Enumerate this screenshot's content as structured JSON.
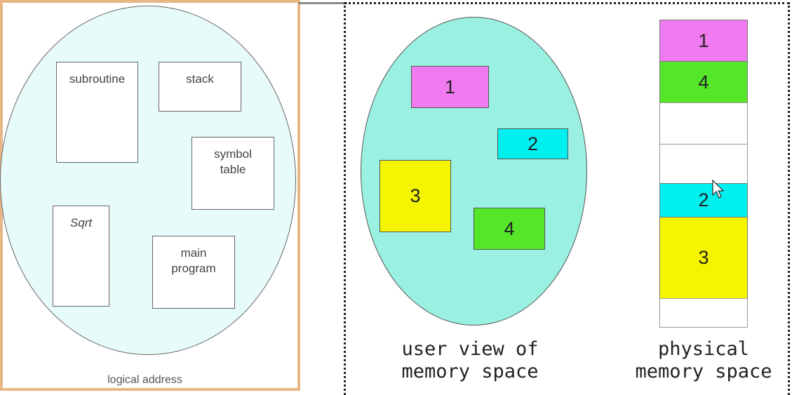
{
  "logical_view": {
    "segments": {
      "subroutine": "subroutine",
      "stack": "stack",
      "symbol_table_line1": "symbol",
      "symbol_table_line2": "table",
      "sqrt": "Sqrt",
      "main_program_line1": "main",
      "main_program_line2": "program"
    },
    "caption": "logical address"
  },
  "user_view": {
    "blocks": [
      "1",
      "2",
      "3",
      "4"
    ],
    "caption_line1": "user view of",
    "caption_line2": "memory space"
  },
  "physical_memory": {
    "slots": [
      "1",
      "4",
      "",
      "",
      "2",
      "3",
      ""
    ],
    "caption_line1": "physical",
    "caption_line2": "memory space"
  },
  "colors": {
    "segment_1": "#f07af0",
    "segment_2": "#00f0f0",
    "segment_3": "#f5f500",
    "segment_4": "#55e62a",
    "logical_ellipse_fill": "#e8fbfb",
    "user_ellipse_fill": "#9af0e1",
    "left_border": "#e8b684"
  }
}
